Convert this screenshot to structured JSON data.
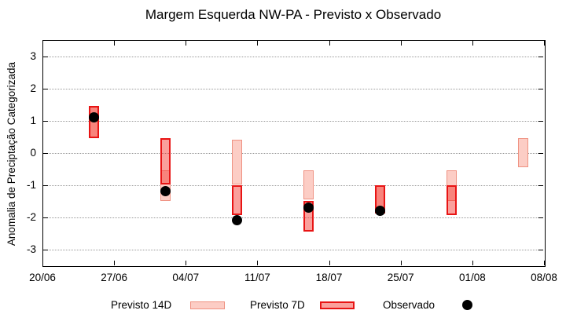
{
  "chart_data": {
    "type": "bar",
    "title": "Margem Esquerda NW-PA - Previsto x Observado",
    "xlabel": "",
    "ylabel": "Anomalia de Preciptação Categorizada",
    "ylim": [
      -3.5,
      3.5
    ],
    "yticks": [
      3,
      2,
      1,
      0,
      -1,
      -2,
      -3
    ],
    "xtick_labels": [
      "20/06",
      "27/06",
      "04/07",
      "11/07",
      "18/07",
      "25/07",
      "01/08",
      "08/08"
    ],
    "xtick_days": [
      0,
      7,
      14,
      21,
      28,
      35,
      42,
      49
    ],
    "x_total_days": 49,
    "grid": true,
    "legend_position": "bottom",
    "legend_labels": [
      "Previsto 14D",
      "Previsto 7D",
      "Observado"
    ],
    "colors": {
      "previsto14_fill": "#fccdc5",
      "previsto14_border": "#ef9181",
      "previsto7_fill": "rgba(244,44,36,0.45)",
      "previsto7_border": "#e81414",
      "observado": "#000000",
      "grid": "#9a9a9a"
    },
    "points": [
      {
        "date": "25/06",
        "day": 5,
        "previsto14": [
          0.45,
          1.45
        ],
        "previsto7": [
          0.45,
          1.45
        ],
        "observado": 1.1
      },
      {
        "date": "02/07",
        "day": 12,
        "previsto14": [
          -1.5,
          -0.55
        ],
        "previsto7": [
          -1.0,
          0.45
        ],
        "observado": -1.2
      },
      {
        "date": "09/07",
        "day": 19,
        "previsto14": [
          -1.0,
          0.4
        ],
        "previsto7": [
          -1.95,
          -1.0
        ],
        "observado": -2.1
      },
      {
        "date": "16/07",
        "day": 26,
        "previsto14": [
          -1.45,
          -0.55
        ],
        "previsto7": [
          -2.45,
          -1.5
        ],
        "observado": -1.7
      },
      {
        "date": "23/07",
        "day": 33,
        "previsto14": [
          -1.9,
          -1.0
        ],
        "previsto7": [
          -1.9,
          -1.0
        ],
        "observado": -1.8
      },
      {
        "date": "30/07",
        "day": 40,
        "previsto14": [
          -1.5,
          -0.55
        ],
        "previsto7": [
          -1.95,
          -1.0
        ],
        "observado": null
      },
      {
        "date": "06/08",
        "day": 47,
        "previsto14": [
          -0.45,
          0.45
        ],
        "previsto7": null,
        "observado": null
      }
    ]
  }
}
